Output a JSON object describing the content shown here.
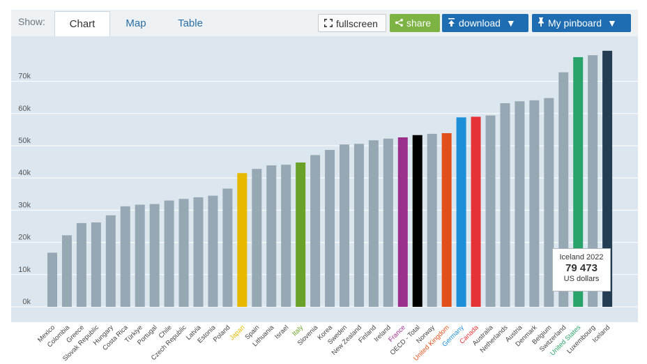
{
  "toolbar": {
    "show_label": "Show:",
    "tabs": [
      {
        "label": "Chart",
        "active": true
      },
      {
        "label": "Map",
        "active": false
      },
      {
        "label": "Table",
        "active": false
      }
    ],
    "fullscreen_label": "fullscreen",
    "share_label": "share",
    "download_label": "download",
    "pinboard_label": "My pinboard"
  },
  "tooltip": {
    "title": "Iceland 2022",
    "value": "79 473",
    "unit": "US dollars"
  },
  "colors": {
    "default_bar": "#95a8b4",
    "Japan": "#e6b800",
    "Italy": "#6aa229",
    "France": "#9a2f8c",
    "OECD - Total": "#000000",
    "United Kingdom": "#e1501b",
    "Germany": "#1d8fd8",
    "Canada": "#e53236",
    "United States": "#29a36a",
    "Iceland": "#253d52"
  },
  "chart_data": {
    "type": "bar",
    "ylim": [
      0,
      82000
    ],
    "yticks": [
      0,
      10000,
      20000,
      30000,
      40000,
      50000,
      60000,
      70000
    ],
    "ytick_labels": [
      "0k",
      "10k",
      "20k",
      "30k",
      "40k",
      "50k",
      "60k",
      "70k"
    ],
    "grid": true,
    "categories": [
      "Mexico",
      "Colombia",
      "Greece",
      "Slovak Republic",
      "Hungary",
      "Costa Rica",
      "Türkiye",
      "Portugal",
      "Chile",
      "Czech Republic",
      "Latvia",
      "Estonia",
      "Poland",
      "Japan",
      "Spain",
      "Lithuania",
      "Israel",
      "Italy",
      "Slovenia",
      "Korea",
      "Sweden",
      "New Zealand",
      "Finland",
      "Ireland",
      "France",
      "OECD - Total",
      "Norway",
      "United Kingdom",
      "Germany",
      "Canada",
      "Australia",
      "Netherlands",
      "Austria",
      "Denmark",
      "Belgium",
      "Switzerland",
      "United States",
      "Luxembourg",
      "Iceland"
    ],
    "values": [
      16800,
      22200,
      26000,
      26200,
      28400,
      31200,
      31700,
      31900,
      33000,
      33500,
      34000,
      34500,
      36700,
      41500,
      42800,
      43900,
      44100,
      44800,
      47100,
      48700,
      50400,
      50600,
      51700,
      52200,
      52600,
      53300,
      53700,
      53900,
      58800,
      59000,
      59400,
      63200,
      63800,
      64100,
      64800,
      72800,
      77500,
      78100,
      79473
    ]
  }
}
